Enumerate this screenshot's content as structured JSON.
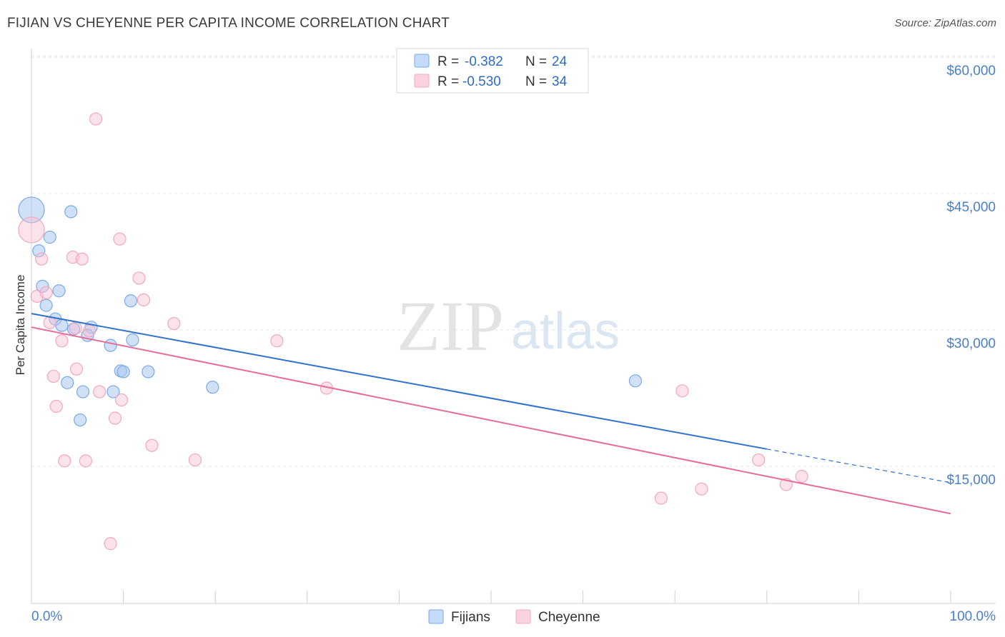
{
  "title": "FIJIAN VS CHEYENNE PER CAPITA INCOME CORRELATION CHART",
  "source": "Source: ZipAtlas.com",
  "watermark": {
    "zip": "ZIP",
    "atlas": "atlas"
  },
  "chart_data": {
    "type": "scatter",
    "ylabel": "Per Capita Income",
    "xlim": [
      0,
      100
    ],
    "ylim": [
      0,
      63000
    ],
    "yticks": [
      15000,
      30000,
      45000,
      60000
    ],
    "ytick_labels": [
      "$15,000",
      "$30,000",
      "$45,000",
      "$60,000"
    ],
    "xtick_labels": [
      "0.0%",
      "100.0%"
    ],
    "colors": {
      "fijians": "#7aaae6",
      "fijians_line": "#2f72d0",
      "cheyenne": "#f0a8bf",
      "cheyenne_line": "#e86a98"
    },
    "legend": [
      {
        "r_label": "R =",
        "r_value": "-0.382",
        "n_label": "N =",
        "n_value": "24"
      },
      {
        "r_label": "R =",
        "r_value": "-0.530",
        "n_label": "N =",
        "n_value": "34"
      }
    ],
    "series": [
      {
        "name": "Fijians",
        "points": [
          [
            0.0,
            43200,
            2
          ],
          [
            4.3,
            43000,
            1
          ],
          [
            2.0,
            40200,
            1
          ],
          [
            0.8,
            38700,
            1
          ],
          [
            1.2,
            34800,
            1
          ],
          [
            3.0,
            34300,
            1
          ],
          [
            1.6,
            32700,
            1
          ],
          [
            2.6,
            31200,
            1
          ],
          [
            3.3,
            30500,
            1
          ],
          [
            4.6,
            30100,
            1
          ],
          [
            6.5,
            30300,
            1
          ],
          [
            6.1,
            29400,
            1
          ],
          [
            10.8,
            33200,
            1
          ],
          [
            11.0,
            28900,
            1
          ],
          [
            8.6,
            28300,
            1
          ],
          [
            9.7,
            25500,
            1
          ],
          [
            10.0,
            25400,
            1
          ],
          [
            12.7,
            25400,
            1
          ],
          [
            3.9,
            24200,
            1
          ],
          [
            5.6,
            23200,
            1
          ],
          [
            8.9,
            23200,
            1
          ],
          [
            19.7,
            23700,
            1
          ],
          [
            5.3,
            20100,
            1
          ],
          [
            65.7,
            24400,
            1
          ]
        ]
      },
      {
        "name": "Cheyenne",
        "points": [
          [
            0.0,
            41000,
            2
          ],
          [
            7.0,
            53200,
            1
          ],
          [
            9.6,
            40000,
            1
          ],
          [
            1.1,
            37800,
            1
          ],
          [
            4.5,
            38000,
            1
          ],
          [
            5.5,
            37800,
            1
          ],
          [
            11.7,
            35700,
            1
          ],
          [
            0.6,
            33700,
            1
          ],
          [
            1.6,
            34100,
            1
          ],
          [
            12.2,
            33300,
            1
          ],
          [
            2.0,
            30800,
            1
          ],
          [
            15.5,
            30700,
            1
          ],
          [
            4.8,
            30200,
            1
          ],
          [
            6.3,
            29900,
            1
          ],
          [
            3.3,
            28800,
            1
          ],
          [
            26.7,
            28800,
            1
          ],
          [
            4.9,
            25700,
            1
          ],
          [
            2.4,
            24900,
            1
          ],
          [
            7.4,
            23200,
            1
          ],
          [
            9.8,
            22300,
            1
          ],
          [
            32.1,
            23600,
            1
          ],
          [
            70.8,
            23300,
            1
          ],
          [
            2.7,
            21600,
            1
          ],
          [
            9.1,
            20300,
            1
          ],
          [
            13.1,
            17300,
            1
          ],
          [
            3.6,
            15600,
            1
          ],
          [
            5.9,
            15600,
            1
          ],
          [
            17.8,
            15700,
            1
          ],
          [
            79.1,
            15700,
            1
          ],
          [
            68.5,
            11500,
            1
          ],
          [
            72.9,
            12500,
            1
          ],
          [
            82.1,
            13000,
            1
          ],
          [
            83.8,
            13900,
            1
          ],
          [
            8.6,
            6500,
            1
          ]
        ]
      }
    ],
    "trendlines": [
      {
        "series": "Fijians",
        "x0": 0,
        "y0": 31800,
        "x1": 80,
        "y1": 16900,
        "dashed_to_x": 100,
        "dashed_to_y": 13200
      },
      {
        "series": "Cheyenne",
        "x0": 0,
        "y0": 30300,
        "x1": 100,
        "y1": 9800
      }
    ]
  }
}
